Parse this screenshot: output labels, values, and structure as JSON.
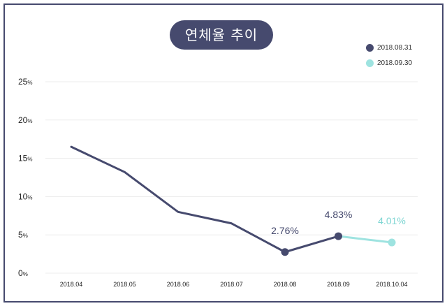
{
  "chart_data": {
    "type": "line",
    "title": "연체율 추이",
    "categories": [
      "2018.04",
      "2018.05",
      "2018.06",
      "2018.07",
      "2018.08",
      "2018.09",
      "2018.10.04"
    ],
    "y_ticks": [
      {
        "value": 25,
        "num": "25",
        "unit": "%"
      },
      {
        "value": 20,
        "num": "20",
        "unit": "%"
      },
      {
        "value": 15,
        "num": "15",
        "unit": "%"
      },
      {
        "value": 10,
        "num": "10",
        "unit": "%"
      },
      {
        "value": 5,
        "num": "5",
        "unit": "%"
      },
      {
        "value": 0,
        "num": "0",
        "unit": "%"
      }
    ],
    "ylim": [
      0,
      25
    ],
    "grid": true,
    "legend_position": "top-right",
    "series": [
      {
        "name": "2018.08.31",
        "color": "#464a6e",
        "values": [
          16.5,
          13.2,
          8.0,
          6.5,
          2.76,
          4.83,
          null
        ],
        "markers": [
          4,
          5
        ],
        "labels": [
          null,
          null,
          null,
          null,
          "2.76%",
          "4.83%",
          null
        ]
      },
      {
        "name": "2018.09.30",
        "color": "#9ee3e0",
        "values": [
          null,
          null,
          null,
          null,
          null,
          4.83,
          4.01
        ],
        "markers": [
          6
        ],
        "labels": [
          null,
          null,
          null,
          null,
          null,
          null,
          "4.01%"
        ]
      }
    ]
  }
}
